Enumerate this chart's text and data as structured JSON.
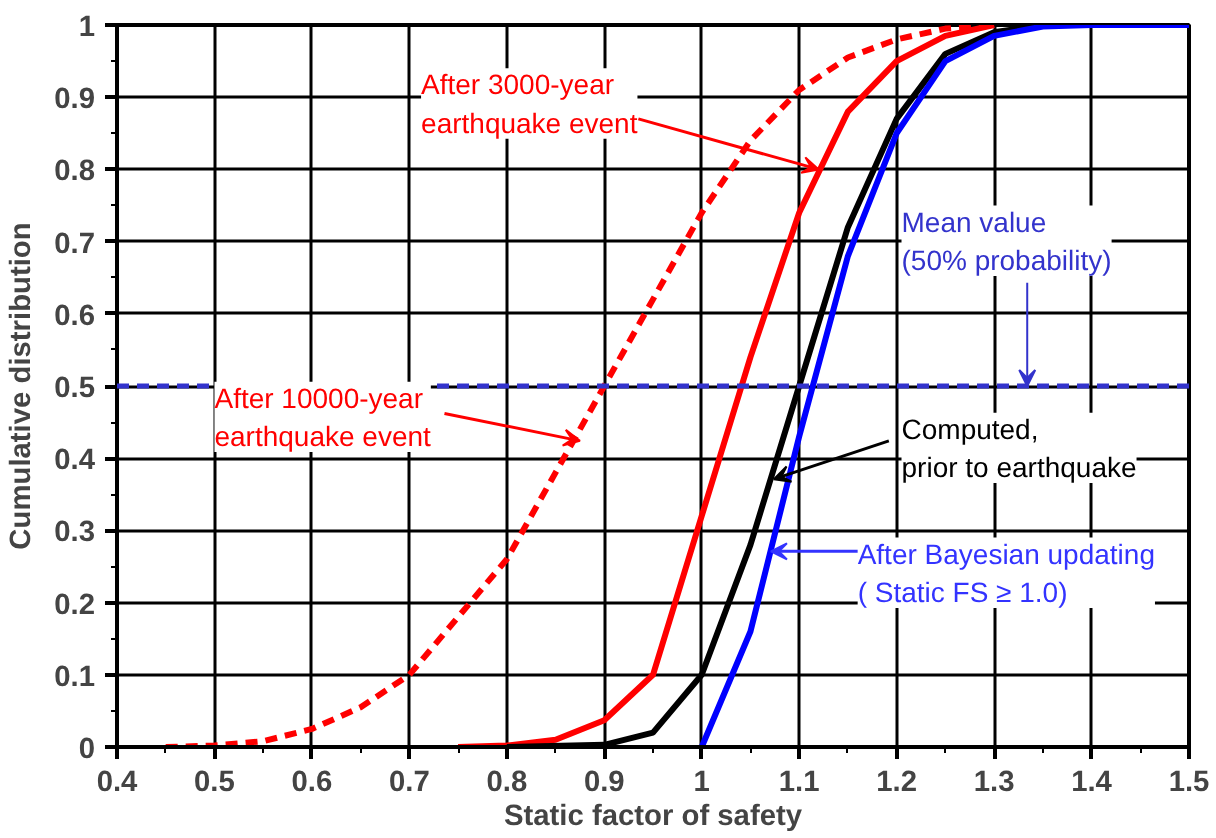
{
  "chart_data": {
    "type": "line",
    "xlabel": "Static factor of safety",
    "ylabel": "Cumulative distribution",
    "xlim": [
      0.4,
      1.5
    ],
    "ylim": [
      0,
      1
    ],
    "xticks": [
      0.4,
      0.5,
      0.6,
      0.7,
      0.8,
      0.9,
      1,
      1.1,
      1.2,
      1.3,
      1.4,
      1.5
    ],
    "yticks": [
      0,
      0.1,
      0.2,
      0.3,
      0.4,
      0.5,
      0.6,
      0.7,
      0.8,
      0.9,
      1
    ],
    "grid": true,
    "marker": "none",
    "series": [
      {
        "color": "#ff0000",
        "line_style": "dashed",
        "x": [
          0.45,
          0.5,
          0.55,
          0.6,
          0.65,
          0.7,
          0.75,
          0.8,
          0.85,
          0.9,
          0.95,
          1.0,
          1.05,
          1.1,
          1.15,
          1.2,
          1.25,
          1.3
        ],
        "values": [
          0,
          0.002,
          0.008,
          0.025,
          0.055,
          0.1,
          0.18,
          0.26,
          0.38,
          0.5,
          0.62,
          0.74,
          0.84,
          0.91,
          0.955,
          0.98,
          0.995,
          1
        ]
      },
      {
        "color": "#ff0000",
        "line_style": "solid",
        "x": [
          0.75,
          0.8,
          0.85,
          0.9,
          0.95,
          1.0,
          1.05,
          1.1,
          1.15,
          1.2,
          1.25,
          1.3
        ],
        "values": [
          0,
          0.002,
          0.01,
          0.037,
          0.1,
          0.32,
          0.54,
          0.74,
          0.88,
          0.95,
          0.985,
          1
        ]
      },
      {
        "color": "#000000",
        "line_style": "solid",
        "x": [
          0.8,
          0.9,
          0.95,
          1.0,
          1.05,
          1.1,
          1.15,
          1.2,
          1.25,
          1.3,
          1.35
        ],
        "values": [
          0,
          0.003,
          0.02,
          0.1,
          0.28,
          0.5,
          0.72,
          0.87,
          0.96,
          0.99,
          1
        ]
      },
      {
        "color": "#0000ff",
        "line_style": "solid",
        "x": [
          1.0,
          1.05,
          1.1,
          1.15,
          1.2,
          1.25,
          1.3,
          1.35,
          1.4,
          1.5
        ],
        "values": [
          0,
          0.16,
          0.43,
          0.68,
          0.85,
          0.95,
          0.985,
          0.998,
          1,
          1
        ]
      }
    ],
    "ref_lines": [
      {
        "axis": "y",
        "value": 0.5,
        "label": "Mean value\n(50% probability)",
        "color": "#3333cc",
        "line_style": "dashed"
      }
    ],
    "annotations": [
      {
        "text": "After 3000-year\nearthquake event",
        "x": 1.12,
        "y": 0.8
      },
      {
        "text": "After 10000-year\nearthquake event",
        "x": 0.875,
        "y": 0.424
      },
      {
        "text": "Computed,\nprior to earthquake",
        "x": 1.074,
        "y": 0.371
      },
      {
        "text": "After Bayesian updating\n( Static FS ≥ 1.0)",
        "x": 1.071,
        "y": 0.271
      }
    ]
  }
}
